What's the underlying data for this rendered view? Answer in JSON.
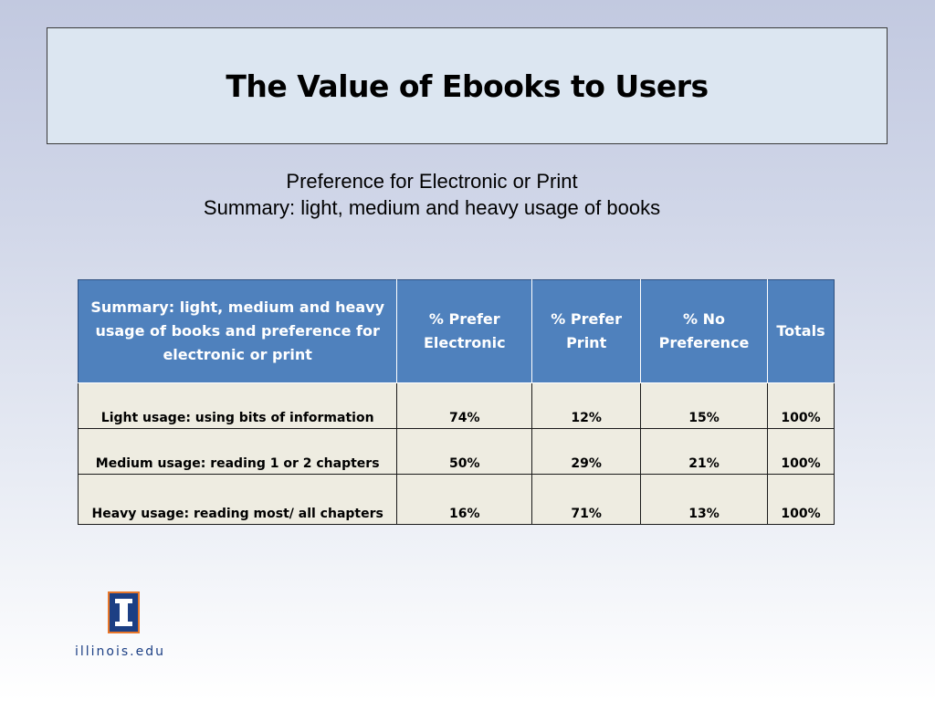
{
  "slide": {
    "title": "The Value of Ebooks to Users",
    "subtitle_line1": "Preference for Electronic or Print",
    "subtitle_line2": "Summary: light, medium and heavy usage of books"
  },
  "table": {
    "headers": [
      "Summary: light, medium and heavy usage of books and preference for electronic or print",
      "% Prefer Electronic",
      "% Prefer Print",
      "% No Preference",
      "Totals"
    ],
    "rows": [
      [
        "Light usage: using bits of information",
        "74%",
        "12%",
        "15%",
        "100%"
      ],
      [
        "Medium usage: reading 1 or 2 chapters",
        "50%",
        "29%",
        "21%",
        "100%"
      ],
      [
        "Heavy usage: reading most/ all chapters",
        "16%",
        "71%",
        "13%",
        "100%"
      ]
    ]
  },
  "footer": {
    "logo_text": "illinois.edu"
  },
  "colors": {
    "header_fill": "#4f81bd",
    "cell_fill": "#eeece1",
    "title_box_fill": "#dce6f1",
    "logo_blue": "#1c3f84",
    "logo_orange": "#e8772a"
  }
}
